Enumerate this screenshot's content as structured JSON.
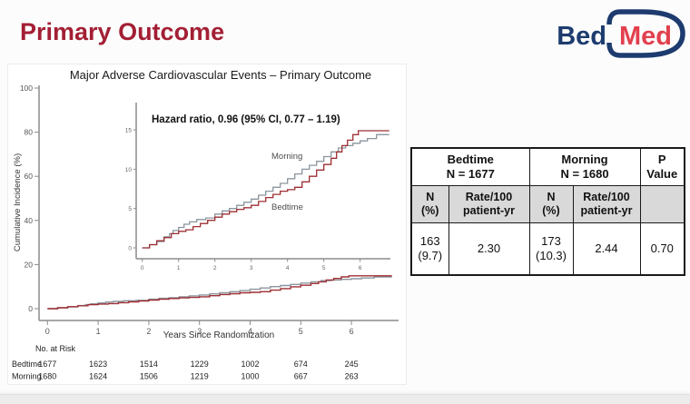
{
  "slide": {
    "title": "Primary Outcome",
    "accent_color": "#a31f34"
  },
  "logo": {
    "part1": "Bed",
    "part2": "Med",
    "navy": "#1d3b6e",
    "red": "#e2404e"
  },
  "chart_data": {
    "type": "line",
    "title": "Major Adverse Cardiovascular Events – Primary Outcome",
    "xlabel": "Years Since Randomization",
    "ylabel": "Cumulative Incidence (%)",
    "annotation": "Hazard ratio, 0.96 (95% CI, 0.77 – 1.19)",
    "x_ticks": [
      0,
      1,
      2,
      3,
      4,
      5,
      6
    ],
    "main_ylim": [
      0,
      100
    ],
    "main_yticks": [
      0,
      20,
      40,
      60,
      80,
      100
    ],
    "inset_ylim": [
      0,
      15
    ],
    "inset_yticks": [
      0,
      5,
      10,
      15
    ],
    "legend_position": "inline-labels",
    "grid": false,
    "series": [
      {
        "name": "Morning",
        "color": "#8b959e",
        "x": [
          0,
          0.2,
          0.4,
          0.6,
          0.75,
          0.85,
          1.0,
          1.15,
          1.3,
          1.5,
          1.75,
          2.0,
          2.2,
          2.4,
          2.6,
          2.8,
          3.0,
          3.2,
          3.4,
          3.6,
          3.8,
          4.0,
          4.2,
          4.4,
          4.6,
          4.8,
          5.0,
          5.2,
          5.4,
          5.6,
          5.8,
          6.0,
          6.2,
          6.45,
          6.8
        ],
        "y": [
          0,
          0.4,
          0.8,
          1.4,
          1.8,
          2.2,
          2.6,
          3.0,
          3.3,
          3.6,
          3.8,
          4.3,
          4.7,
          5.0,
          5.4,
          5.8,
          6.2,
          6.7,
          7.2,
          7.7,
          8.2,
          8.8,
          9.4,
          10.0,
          10.5,
          11.0,
          11.6,
          12.2,
          12.7,
          13.0,
          13.3,
          13.6,
          13.9,
          14.4,
          14.4
        ]
      },
      {
        "name": "Bedtime",
        "color": "#9e2f33",
        "x": [
          0,
          0.2,
          0.4,
          0.6,
          0.8,
          1.0,
          1.2,
          1.4,
          1.6,
          1.8,
          2.0,
          2.2,
          2.4,
          2.6,
          2.8,
          3.0,
          3.2,
          3.4,
          3.6,
          3.8,
          4.0,
          4.2,
          4.4,
          4.6,
          4.8,
          5.0,
          5.2,
          5.35,
          5.5,
          5.65,
          5.8,
          5.95,
          6.8
        ],
        "y": [
          0,
          0.4,
          0.9,
          1.3,
          1.8,
          2.1,
          2.3,
          2.7,
          3.1,
          3.5,
          3.9,
          4.3,
          4.6,
          4.9,
          5.1,
          5.4,
          5.9,
          6.4,
          6.8,
          7.2,
          7.4,
          7.7,
          8.4,
          9.1,
          9.9,
          10.6,
          11.4,
          12.2,
          13.0,
          13.7,
          14.4,
          14.9,
          14.9
        ]
      }
    ],
    "risk_table": {
      "label": "No. at Risk",
      "rows": [
        {
          "name": "Bedtime",
          "values": [
            "1677",
            "1623",
            "1514",
            "1229",
            "1002",
            "674",
            "245"
          ]
        },
        {
          "name": "Morning",
          "values": [
            "1680",
            "1624",
            "1506",
            "1219",
            "1000",
            "667",
            "263"
          ]
        }
      ]
    }
  },
  "results_table": {
    "groups": [
      "Bedtime\nN = 1677",
      "Morning\nN = 1680",
      "P\nValue"
    ],
    "subheaders": [
      "N\n(%)",
      "Rate/100\npatient-yr",
      "N\n(%)",
      "Rate/100\npatient-yr",
      ""
    ],
    "values": [
      "163\n(9.7)",
      "2.30",
      "173\n(10.3)",
      "2.44",
      "0.70"
    ]
  }
}
